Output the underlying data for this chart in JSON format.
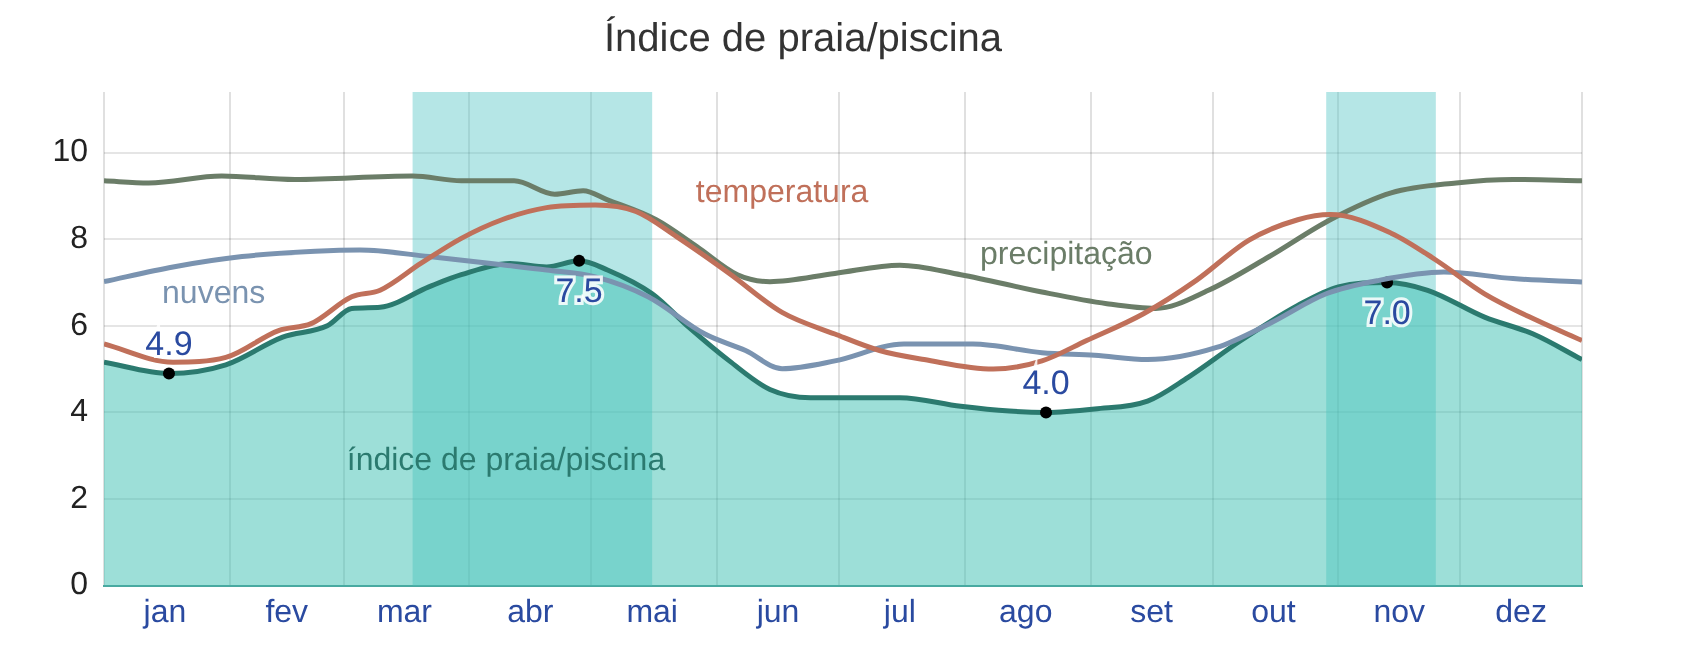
{
  "chart_data": {
    "type": "line",
    "title": "Índice de praia/piscina",
    "xlim": [
      "--01-01",
      "--12-31"
    ],
    "xticks": [
      {
        "value": "--01-01",
        "label": null
      },
      {
        "value": "--01-16",
        "label": "jan"
      },
      {
        "value": "--02-01",
        "label": null
      },
      {
        "value": "--02-15",
        "label": "fev"
      },
      {
        "value": "--03-01",
        "label": null
      },
      {
        "value": "--03-16",
        "label": "mar"
      },
      {
        "value": "--04-01",
        "label": null
      },
      {
        "value": "--04-16",
        "label": "abr"
      },
      {
        "value": "--05-01",
        "label": null
      },
      {
        "value": "--05-16",
        "label": "mai"
      },
      {
        "value": "--06-01",
        "label": null
      },
      {
        "value": "--06-16",
        "label": "jun"
      },
      {
        "value": "--07-01",
        "label": null
      },
      {
        "value": "--07-16",
        "label": "jul"
      },
      {
        "value": "--08-01",
        "label": null
      },
      {
        "value": "--08-16",
        "label": "ago"
      },
      {
        "value": "--09-01",
        "label": null
      },
      {
        "value": "--09-16",
        "label": "set"
      },
      {
        "value": "--10-01",
        "label": null
      },
      {
        "value": "--10-16",
        "label": "out"
      },
      {
        "value": "--11-01",
        "label": null
      },
      {
        "value": "--11-16",
        "label": "nov"
      },
      {
        "value": "--12-01",
        "label": null
      },
      {
        "value": "--12-16",
        "label": "dez"
      },
      {
        "value": "--12-31",
        "label": null
      }
    ],
    "ylim": [
      0,
      11.4
    ],
    "yticks": [
      0,
      2,
      4,
      6,
      8,
      10
    ],
    "grid": true,
    "legend": false,
    "bands": [
      {
        "axis": "x",
        "from": "--03-18",
        "to": "--05-16",
        "color": "#5cc8c8"
      },
      {
        "axis": "x",
        "from": "--10-29",
        "to": "--11-25",
        "color": "#5cc8c8"
      }
    ],
    "series": [
      {
        "name": "índice de praia/piscina",
        "type": "area",
        "color": "#2b7a6f",
        "x": [
          "--01-01",
          "--01-17",
          "--01-31",
          "--02-14",
          "--02-25",
          "--03-03",
          "--03-10",
          "--03-22",
          "--03-30",
          "--04-11",
          "--04-20",
          "--04-28",
          "--05-05",
          "--05-16",
          "--05-25",
          "--06-04",
          "--06-14",
          "--06-24",
          "--06-30",
          "--07-16",
          "--07-31",
          "--08-12",
          "--08-21",
          "--09-02",
          "--09-15",
          "--09-25",
          "--10-08",
          "--10-22",
          "--11-01",
          "--11-13",
          "--11-23",
          "--12-07",
          "--12-19",
          "--12-31"
        ],
        "values": [
          5.16,
          4.9,
          5.1,
          5.74,
          6.0,
          6.4,
          6.43,
          6.9,
          7.18,
          7.44,
          7.36,
          7.5,
          7.29,
          6.74,
          5.97,
          5.19,
          4.53,
          4.34,
          4.34,
          4.34,
          4.14,
          4.03,
          4.0,
          4.08,
          4.26,
          4.81,
          5.66,
          6.47,
          6.9,
          7.0,
          6.82,
          6.2,
          5.81,
          5.22
        ],
        "value_labels": [
          null,
          "4.9",
          null,
          null,
          null,
          null,
          null,
          null,
          null,
          null,
          null,
          "7.5",
          null,
          null,
          null,
          null,
          null,
          null,
          null,
          null,
          null,
          null,
          "4.0",
          null,
          null,
          null,
          null,
          null,
          null,
          "7.0",
          null,
          null,
          null,
          null
        ]
      },
      {
        "name": "temperatura",
        "type": "line",
        "color": "#c0705a",
        "x": [
          "--01-01",
          "--01-18",
          "--01-31",
          "--02-13",
          "--02-21",
          "--03-03",
          "--03-10",
          "--03-20",
          "--03-30",
          "--04-09",
          "--04-20",
          "--05-02",
          "--05-12",
          "--05-22",
          "--06-04",
          "--06-17",
          "--06-30",
          "--07-11",
          "--07-22",
          "--08-08",
          "--08-20",
          "--08-31",
          "--09-14",
          "--09-27",
          "--10-10",
          "--10-22",
          "--10-30",
          "--11-14",
          "--11-25",
          "--12-07",
          "--12-20",
          "--12-31"
        ],
        "values": [
          5.58,
          5.16,
          5.27,
          5.89,
          6.05,
          6.67,
          6.82,
          7.44,
          8.02,
          8.45,
          8.73,
          8.79,
          8.64,
          8.06,
          7.21,
          6.31,
          5.81,
          5.43,
          5.22,
          5.0,
          5.19,
          5.66,
          6.28,
          7.05,
          7.98,
          8.45,
          8.57,
          8.14,
          7.52,
          6.74,
          6.12,
          5.66
        ]
      },
      {
        "name": "precipitação",
        "type": "line",
        "color": "#6b7d68",
        "x": [
          "--01-01",
          "--01-12",
          "--01-30",
          "--02-17",
          "--03-18",
          "--03-30",
          "--04-12",
          "--04-22",
          "--04-29",
          "--05-05",
          "--05-17",
          "--05-27",
          "--06-06",
          "--06-14",
          "--06-30",
          "--07-16",
          "--07-31",
          "--08-20",
          "--09-05",
          "--09-17",
          "--09-30",
          "--10-15",
          "--10-30",
          "--11-14",
          "--11-30",
          "--12-14",
          "--12-31"
        ],
        "values": [
          9.35,
          9.3,
          9.46,
          9.38,
          9.46,
          9.35,
          9.35,
          9.04,
          9.12,
          8.91,
          8.45,
          7.83,
          7.18,
          7.02,
          7.21,
          7.4,
          7.18,
          6.78,
          6.51,
          6.4,
          6.82,
          7.6,
          8.45,
          9.07,
          9.3,
          9.38,
          9.35
        ]
      },
      {
        "name": "nuvens",
        "type": "line",
        "color": "#7a93b0",
        "x": [
          "--01-01",
          "--01-18",
          "--02-04",
          "--02-22",
          "--03-05",
          "--03-22",
          "--04-09",
          "--04-20",
          "--05-02",
          "--05-15",
          "--05-29",
          "--06-08",
          "--06-17",
          "--06-30",
          "--07-17",
          "--08-03",
          "--08-20",
          "--09-02",
          "--09-15",
          "--10-02",
          "--10-15",
          "--10-29",
          "--11-11",
          "--11-27",
          "--12-14",
          "--12-31"
        ],
        "values": [
          7.02,
          7.36,
          7.6,
          7.72,
          7.75,
          7.6,
          7.41,
          7.29,
          7.13,
          6.67,
          5.81,
          5.43,
          5.01,
          5.19,
          5.58,
          5.58,
          5.38,
          5.32,
          5.22,
          5.5,
          6.05,
          6.74,
          7.05,
          7.24,
          7.09,
          7.01
        ]
      }
    ]
  }
}
